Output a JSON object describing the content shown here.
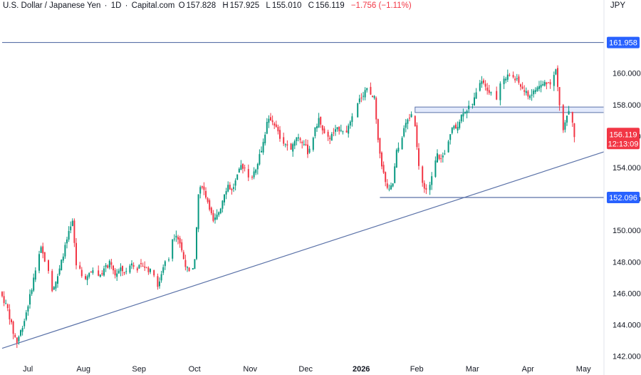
{
  "header": {
    "symbol": "U.S. Dollar / Japanese Yen",
    "interval": "1D",
    "source": "Capital.com",
    "open_label": "O",
    "open": "157.828",
    "high_label": "H",
    "high": "157.925",
    "low_label": "L",
    "low": "155.010",
    "close_label": "C",
    "close": "156.119",
    "change": "−1.756 (−1.11%)"
  },
  "currency": "JPY",
  "colors": {
    "up": "#089981",
    "down": "#f23645",
    "line": "#5b72a8",
    "tag": "#2962ff",
    "zone": "#e3eafc"
  },
  "price_tag": {
    "price": "156.119",
    "countdown": "12:13:09"
  },
  "chart_data": {
    "type": "candlestick",
    "ylim": [
      142,
      163
    ],
    "y_ticks": [
      142,
      144,
      146,
      148,
      150,
      152,
      154,
      156,
      158,
      160
    ],
    "y_tick_labels": [
      "142.000",
      "144.000",
      "146.000",
      "148.000",
      "150.000",
      "152.000",
      "154.000",
      "156.000",
      "158.000",
      "160.000"
    ],
    "x_labels": [
      "Jul",
      "Aug",
      "Sep",
      "Oct",
      "Nov",
      "Dec",
      "2026",
      "Feb",
      "Mar",
      "Apr",
      "May"
    ],
    "x_label_index": [
      7,
      37,
      67,
      97,
      127,
      157,
      187,
      217,
      247,
      277,
      307
    ],
    "x_bold_label": "2026",
    "levels": [
      {
        "value": 161.958,
        "label": "161.958",
        "from_index": 0
      },
      {
        "value": 152.096,
        "label": "152.096",
        "from_index": 204
      }
    ],
    "zone": {
      "from_index": 223,
      "low": 157.5,
      "high": 157.85
    },
    "trendline": {
      "start_index": 0,
      "start_value": 142.5,
      "end_index": 325,
      "end_value": 155.0
    },
    "trend_points": [
      [
        0,
        145.8
      ],
      [
        3,
        145.0
      ],
      [
        6,
        143.5
      ],
      [
        8,
        142.9
      ],
      [
        12,
        144.3
      ],
      [
        15,
        145.8
      ],
      [
        18,
        147.5
      ],
      [
        21,
        148.8
      ],
      [
        24,
        147.8
      ],
      [
        27,
        146.3
      ],
      [
        30,
        147.0
      ],
      [
        33,
        148.5
      ],
      [
        36,
        149.8
      ],
      [
        38,
        150.5
      ],
      [
        40,
        147.8
      ],
      [
        43,
        147.2
      ],
      [
        46,
        147.0
      ],
      [
        49,
        147.5
      ],
      [
        52,
        147.1
      ],
      [
        55,
        147.5
      ],
      [
        58,
        147.9
      ],
      [
        61,
        147.2
      ],
      [
        64,
        147.5
      ],
      [
        67,
        147.3
      ],
      [
        70,
        148.0
      ],
      [
        73,
        147.6
      ],
      [
        76,
        147.8
      ],
      [
        79,
        147.5
      ],
      [
        82,
        147.2
      ],
      [
        84,
        146.3
      ],
      [
        87,
        147.8
      ],
      [
        90,
        148.3
      ],
      [
        92,
        149.5
      ],
      [
        94,
        149.8
      ],
      [
        96,
        149.2
      ],
      [
        98,
        148.2
      ],
      [
        100,
        147.5
      ],
      [
        102,
        147.1
      ],
      [
        104,
        148.0
      ],
      [
        106,
        152.3
      ],
      [
        108,
        152.9
      ],
      [
        110,
        152.2
      ],
      [
        112,
        151.5
      ],
      [
        114,
        150.5
      ],
      [
        116,
        150.9
      ],
      [
        118,
        151.5
      ],
      [
        120,
        152.4
      ],
      [
        122,
        152.9
      ],
      [
        124,
        152.5
      ],
      [
        127,
        153.4
      ],
      [
        129,
        154.1
      ],
      [
        131,
        154.0
      ],
      [
        133,
        153.5
      ],
      [
        135,
        153.5
      ],
      [
        137,
        154.0
      ],
      [
        139,
        154.8
      ],
      [
        141,
        155.6
      ],
      [
        143,
        156.8
      ],
      [
        145,
        157.1
      ],
      [
        147,
        156.8
      ],
      [
        149,
        156.2
      ],
      [
        151,
        155.6
      ],
      [
        153,
        155.5
      ],
      [
        155,
        155.0
      ],
      [
        157,
        155.5
      ],
      [
        159,
        156.0
      ],
      [
        161,
        155.8
      ],
      [
        163,
        155.5
      ],
      [
        165,
        155.0
      ],
      [
        167,
        155.5
      ],
      [
        169,
        156.4
      ],
      [
        171,
        157.1
      ],
      [
        173,
        156.3
      ],
      [
        175,
        155.8
      ],
      [
        177,
        155.9
      ],
      [
        179,
        156.2
      ],
      [
        181,
        156.4
      ],
      [
        183,
        156.5
      ],
      [
        185,
        156.3
      ],
      [
        187,
        156.5
      ],
      [
        189,
        157.1
      ],
      [
        191,
        157.7
      ],
      [
        193,
        158.3
      ],
      [
        195,
        158.7
      ],
      [
        197,
        159.1
      ],
      [
        199,
        158.5
      ],
      [
        201,
        158.4
      ],
      [
        203,
        155.6
      ],
      [
        205,
        154.2
      ],
      [
        207,
        153.0
      ],
      [
        209,
        152.5
      ],
      [
        211,
        153.0
      ],
      [
        213,
        155.0
      ],
      [
        215,
        155.5
      ],
      [
        217,
        156.5
      ],
      [
        219,
        157.0
      ],
      [
        221,
        157.4
      ],
      [
        223,
        156.5
      ],
      [
        225,
        154.0
      ],
      [
        227,
        153.0
      ],
      [
        229,
        152.6
      ],
      [
        231,
        152.8
      ],
      [
        233,
        154.0
      ],
      [
        235,
        154.8
      ],
      [
        237,
        154.5
      ],
      [
        239,
        155.0
      ],
      [
        241,
        155.8
      ],
      [
        243,
        156.5
      ],
      [
        245,
        156.5
      ],
      [
        247,
        157.0
      ],
      [
        249,
        157.6
      ],
      [
        251,
        157.7
      ],
      [
        253,
        158.0
      ],
      [
        255,
        158.3
      ],
      [
        257,
        159.5
      ],
      [
        259,
        159.6
      ],
      [
        261,
        159.3
      ],
      [
        263,
        158.8
      ],
      [
        265,
        158.9
      ],
      [
        267,
        158.2
      ],
      [
        269,
        159.2
      ],
      [
        271,
        159.6
      ],
      [
        273,
        160.0
      ],
      [
        275,
        159.9
      ],
      [
        277,
        159.6
      ],
      [
        279,
        159.4
      ],
      [
        281,
        159.0
      ],
      [
        283,
        158.7
      ],
      [
        285,
        158.6
      ],
      [
        287,
        158.8
      ],
      [
        289,
        159.1
      ],
      [
        291,
        159.2
      ],
      [
        293,
        159.4
      ],
      [
        295,
        159.4
      ],
      [
        297,
        159.5
      ],
      [
        299,
        160.2
      ],
      [
        301,
        158.0
      ],
      [
        303,
        156.5
      ],
      [
        305,
        157.4
      ],
      [
        307,
        157.9
      ],
      [
        309,
        156.1
      ]
    ]
  }
}
